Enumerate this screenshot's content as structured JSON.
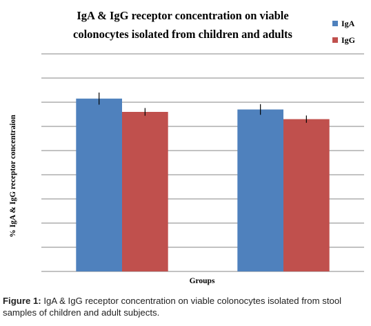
{
  "chart_data": {
    "type": "bar",
    "title_lines": [
      "IgA & IgG  receptor concentration on viable",
      "colonocytes isolated from children and adults"
    ],
    "xlabel": "Groups",
    "ylabel": "% IgA & IgG receptor concentraion",
    "categories": [
      "",
      ""
    ],
    "series": [
      {
        "name": "IgA",
        "color": "#4f81bd",
        "values": [
          7.15,
          6.7
        ],
        "errors": [
          0.25,
          0.22
        ]
      },
      {
        "name": "IgG",
        "color": "#c0504d",
        "values": [
          6.6,
          6.3
        ],
        "errors": [
          0.16,
          0.15
        ]
      }
    ],
    "ylim": [
      0,
      9
    ],
    "y_ticks_labeled": false,
    "grid": true,
    "legend": "right"
  },
  "caption": {
    "label": "Figure 1:",
    "text": " IgA & IgG receptor concentration on viable colonocytes isolated from stool samples of children and adult subjects."
  }
}
